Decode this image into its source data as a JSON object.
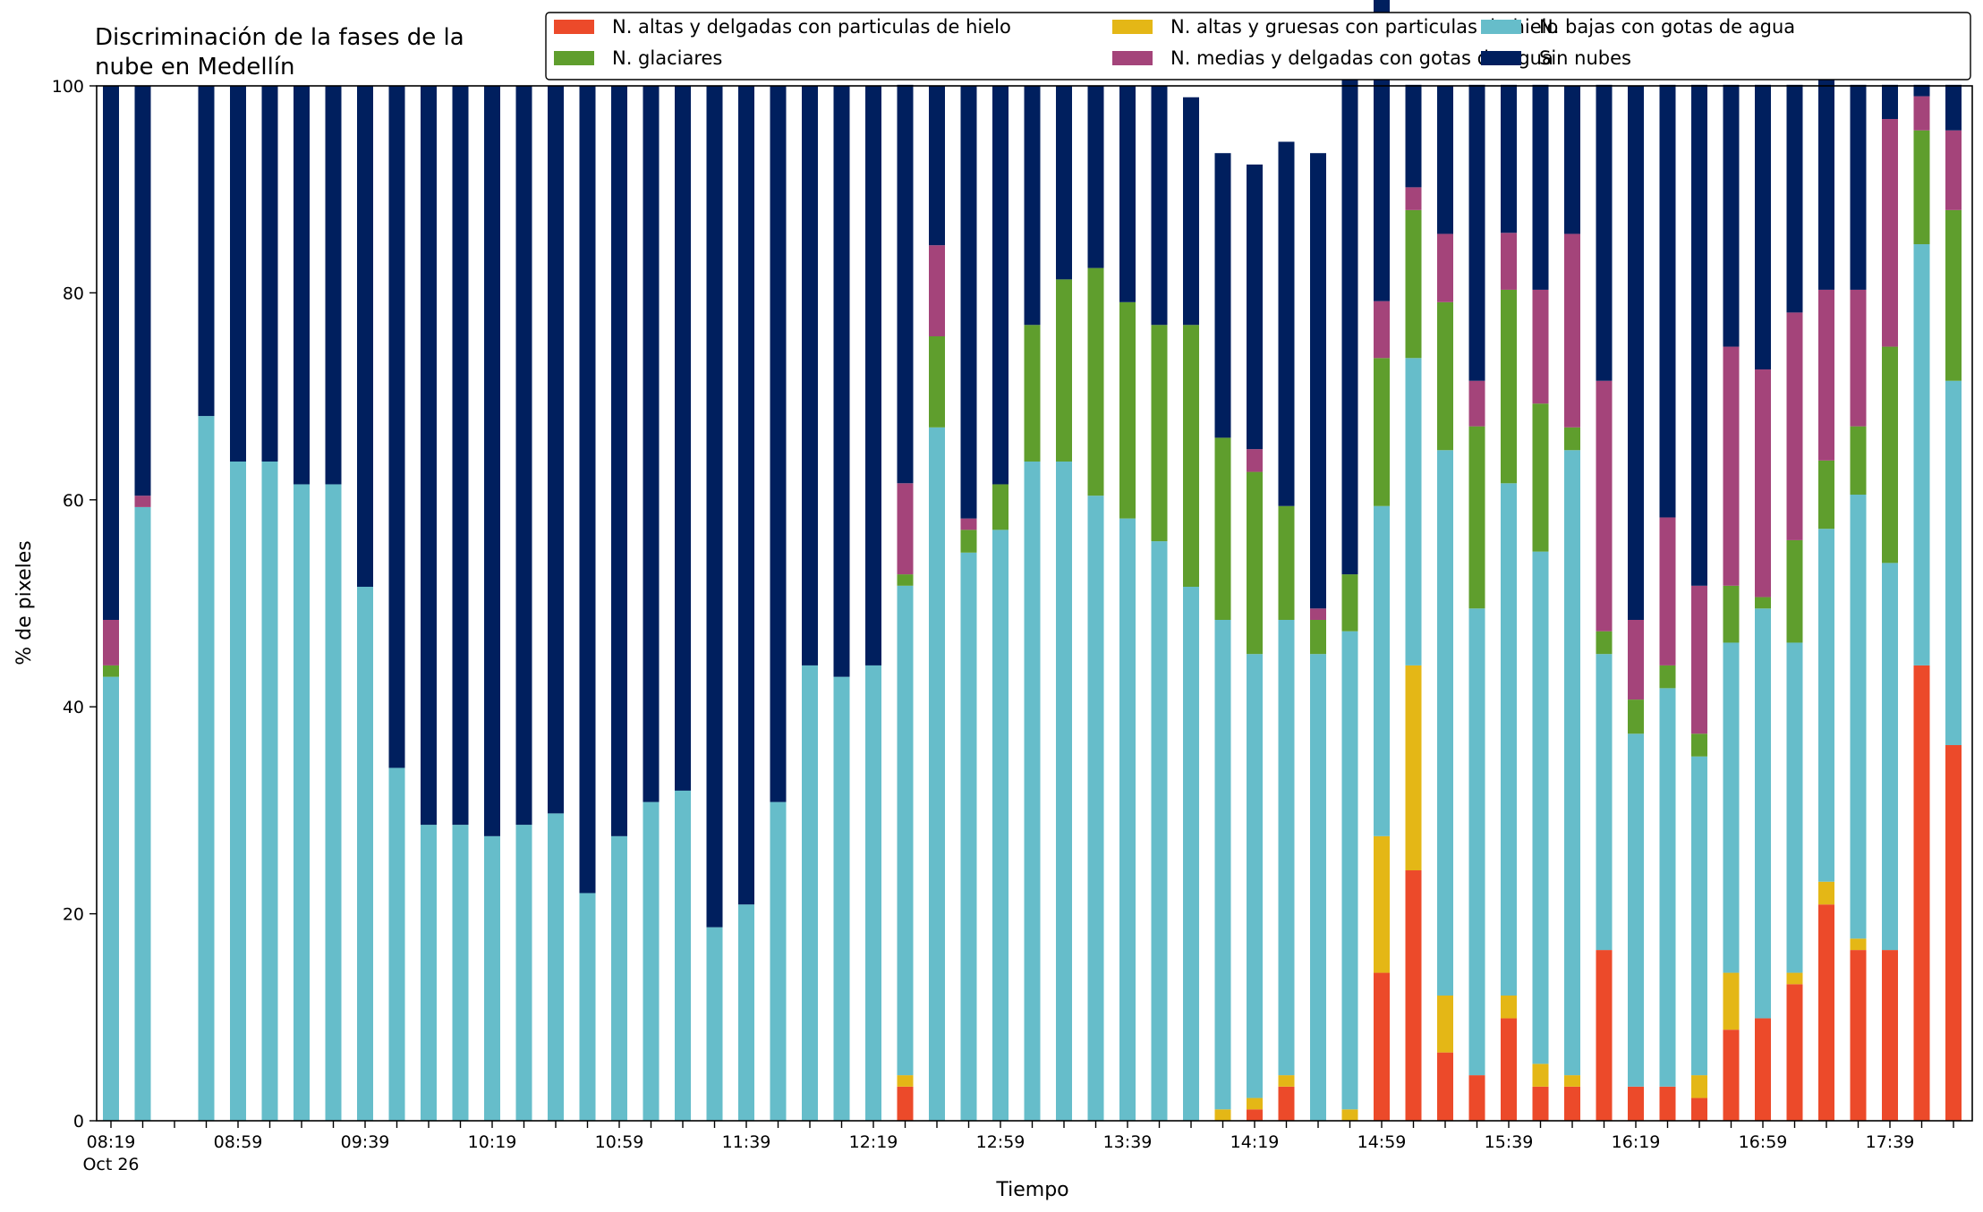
{
  "chart_data": {
    "type": "bar",
    "stacked": true,
    "title_lines": [
      "Discriminación de la fases de la",
      "nube en Medellín"
    ],
    "xlabel": "Tiempo",
    "ylabel": "% de pixeles",
    "ylim": [
      0,
      100
    ],
    "yticks": [
      0,
      20,
      40,
      60,
      80,
      100
    ],
    "xtick_labels": [
      {
        "slot": 0,
        "label": "08:19",
        "sublabel": "Oct 26"
      },
      {
        "slot": 4,
        "label": "08:59"
      },
      {
        "slot": 8,
        "label": "09:39"
      },
      {
        "slot": 12,
        "label": "10:19"
      },
      {
        "slot": 16,
        "label": "10:59"
      },
      {
        "slot": 20,
        "label": "11:39"
      },
      {
        "slot": 24,
        "label": "12:19"
      },
      {
        "slot": 28,
        "label": "12:59"
      },
      {
        "slot": 32,
        "label": "13:39"
      },
      {
        "slot": 36,
        "label": "14:19"
      },
      {
        "slot": 40,
        "label": "14:59"
      },
      {
        "slot": 44,
        "label": "15:39"
      },
      {
        "slot": 48,
        "label": "16:19"
      },
      {
        "slot": 52,
        "label": "16:59"
      },
      {
        "slot": 56,
        "label": "17:39"
      }
    ],
    "grid": false,
    "legend_position": "top-right",
    "legend_columns": 3,
    "series": [
      {
        "name": "N. altas y delgadas con particulas de hielo",
        "color": "#ec4a2a",
        "values": [
          0,
          0,
          null,
          0,
          0,
          0,
          0,
          0,
          0,
          0,
          0,
          0,
          0,
          0,
          0,
          0,
          0,
          0,
          0,
          0,
          0,
          0,
          0,
          0,
          0,
          3.3,
          0,
          0,
          0,
          0,
          0,
          0,
          0,
          0,
          0,
          0,
          1.1,
          3.3,
          0,
          0,
          14.3,
          24.2,
          6.6,
          4.4,
          9.9,
          3.3,
          3.3,
          16.5,
          3.3,
          3.3,
          2.2,
          8.8,
          9.9,
          13.2,
          20.9,
          16.5,
          16.5,
          44,
          36.3
        ]
      },
      {
        "name": "N. altas y gruesas con particulas de hielo",
        "color": "#e4b716",
        "values": [
          0,
          0,
          null,
          0,
          0,
          0,
          0,
          0,
          0,
          0,
          0,
          0,
          0,
          0,
          0,
          0,
          0,
          0,
          0,
          0,
          0,
          0,
          0,
          0,
          0,
          1.1,
          0,
          0,
          0,
          0,
          0,
          0,
          0,
          0,
          0,
          1.1,
          1.1,
          1.1,
          0,
          1.1,
          13.2,
          19.8,
          5.5,
          0,
          2.2,
          2.2,
          1.1,
          0,
          0,
          0,
          2.2,
          5.5,
          0,
          1.1,
          2.2,
          1.1,
          0,
          0,
          0
        ]
      },
      {
        "name": "N. bajas con gotas de agua",
        "color": "#66bdca",
        "values": [
          42.9,
          59.3,
          null,
          68.1,
          63.7,
          63.7,
          61.5,
          61.5,
          51.6,
          34.1,
          28.6,
          28.6,
          27.5,
          28.6,
          29.7,
          22,
          27.5,
          30.8,
          31.9,
          18.7,
          20.9,
          30.8,
          44,
          42.9,
          44,
          47.3,
          67,
          54.9,
          57.1,
          63.7,
          63.7,
          60.4,
          58.2,
          56,
          51.6,
          47.3,
          42.9,
          44,
          45.1,
          46.2,
          31.9,
          29.7,
          52.7,
          45.1,
          49.5,
          49.5,
          60.4,
          28.6,
          34.1,
          38.5,
          30.8,
          31.9,
          39.6,
          31.9,
          34.1,
          42.9,
          37.4,
          40.7,
          35.2
        ]
      },
      {
        "name": "N. glaciares",
        "color": "#5f9e2d",
        "values": [
          1.1,
          0,
          null,
          0,
          0,
          0,
          0,
          0,
          0,
          0,
          0,
          0,
          0,
          0,
          0,
          0,
          0,
          0,
          0,
          0,
          0,
          0,
          0,
          0,
          0,
          1.1,
          8.8,
          2.2,
          4.4,
          13.2,
          17.6,
          22,
          20.9,
          20.9,
          25.3,
          17.6,
          17.6,
          11,
          3.3,
          5.5,
          14.3,
          14.3,
          14.3,
          17.6,
          18.7,
          14.3,
          2.2,
          2.2,
          3.3,
          2.2,
          2.2,
          5.5,
          1.1,
          9.9,
          6.6,
          6.6,
          20.9,
          11,
          16.5
        ]
      },
      {
        "name": "N. medias y delgadas con gotas de agua",
        "color": "#a4447a",
        "values": [
          4.4,
          1.1,
          null,
          0,
          0,
          0,
          0,
          0,
          0,
          0,
          0,
          0,
          0,
          0,
          0,
          0,
          0,
          0,
          0,
          0,
          0,
          0,
          0,
          0,
          0,
          8.8,
          8.8,
          1.1,
          0,
          0,
          0,
          0,
          0,
          0,
          0,
          0,
          2.2,
          0,
          1.1,
          0,
          5.5,
          2.2,
          6.6,
          4.4,
          5.5,
          11,
          18.7,
          24.2,
          7.7,
          14.3,
          14.3,
          23.1,
          22,
          22,
          16.5,
          13.2,
          22,
          3.3,
          7.7
        ]
      },
      {
        "name": "Sin nubes",
        "color": "#001f5e",
        "values": [
          51.6,
          39.6,
          null,
          31.9,
          36.3,
          36.3,
          38.5,
          38.5,
          48.4,
          65.9,
          71.4,
          71.4,
          72.5,
          71.4,
          70.3,
          78,
          72.5,
          69.2,
          68.1,
          81.3,
          79.1,
          69.2,
          56,
          57.1,
          56,
          38.5,
          15.4,
          41.8,
          38.5,
          23.1,
          18.7,
          17.6,
          20.9,
          23.1,
          22,
          27.5,
          27.5,
          35.2,
          44,
          49.5,
          29.7,
          9.9,
          14.3,
          28.6,
          14.3,
          19.8,
          14.3,
          28.6,
          51.6,
          41.8,
          48.4,
          25.3,
          27.5,
          22,
          20.9,
          19.8,
          3.3,
          1.1,
          4.4
        ]
      }
    ]
  }
}
